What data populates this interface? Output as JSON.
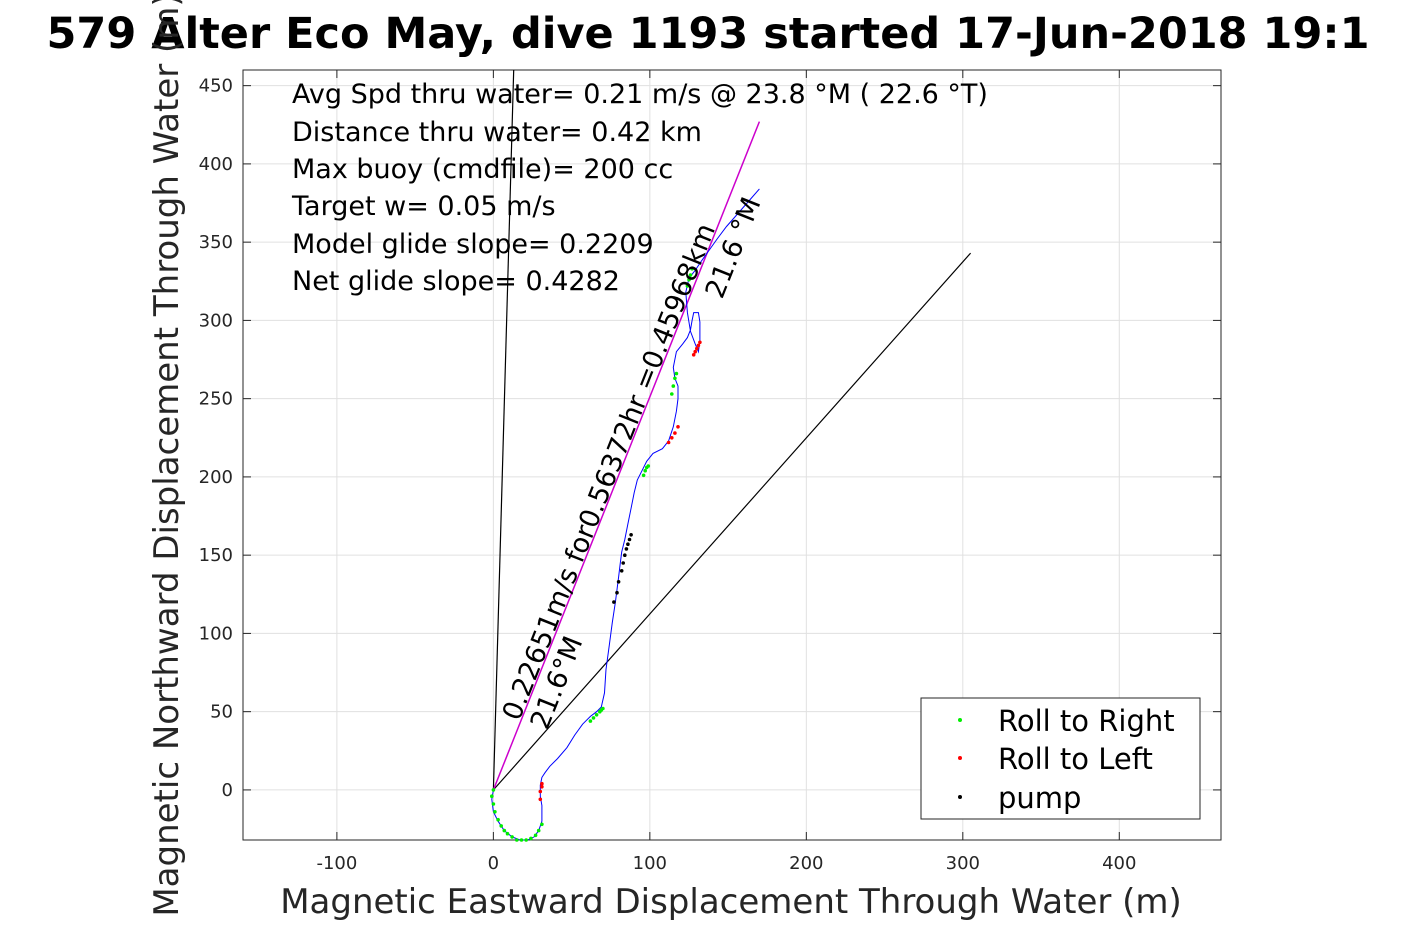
{
  "chart_data": {
    "type": "line",
    "title": "579 Alter Eco May, dive 1193 started 17-Jun-2018 19:1",
    "xlabel": "Magnetic Eastward Displacement Through Water (m)",
    "ylabel": "Magnetic Northward Displacement Through Water (m)",
    "xlim": [
      -160,
      465
    ],
    "ylim": [
      -32,
      460
    ],
    "xticks": [
      -100,
      0,
      100,
      200,
      300,
      400
    ],
    "yticks": [
      0,
      50,
      100,
      150,
      200,
      250,
      300,
      350,
      400,
      450
    ],
    "xtick_labels": [
      "-100",
      "0",
      "100",
      "200",
      "300",
      "400"
    ],
    "ytick_labels": [
      "0",
      "50",
      "100",
      "150",
      "200",
      "250",
      "300",
      "350",
      "400",
      "450"
    ],
    "grid": true,
    "legend_position": "bottom-right",
    "colors": {
      "track": "#0000ff",
      "roll_right": "#00ee00",
      "roll_left": "#ff0000",
      "pump": "#000000",
      "fit": "#cc00cc",
      "reference": "#000000"
    },
    "annotations": [
      "Avg Spd thru water=  0.21 m/s @  23.8 °M ( 22.6 °T)",
      "Distance thru water=  0.42 km",
      "Max buoy (cmdfile)= 200 cc",
      "Target w= 0.05 m/s",
      "Model glide slope= 0.2209",
      "Net glide slope= 0.4282"
    ],
    "line_labels": {
      "speed_line1": "0.22651m/s for0.56372hr =0.45968km",
      "speed_line2": "21.6°M",
      "track_line": "21.6 °M"
    },
    "legend": [
      {
        "label": "Roll to Right",
        "color": "#00ee00"
      },
      {
        "label": "Roll to Left",
        "color": "#ff0000"
      },
      {
        "label": "pump",
        "color": "#000000"
      }
    ],
    "series": [
      {
        "role": "track",
        "x": [
          0,
          -1,
          0,
          3,
          7,
          12,
          17,
          22,
          26,
          29,
          31,
          31,
          30,
          30,
          31,
          33,
          36,
          41,
          47,
          52,
          57,
          62,
          66,
          69,
          71,
          72,
          74,
          76,
          78,
          79,
          80,
          81,
          82,
          84,
          86,
          88,
          90,
          92,
          95,
          98,
          102,
          108,
          112,
          115,
          117,
          118,
          118,
          116,
          115,
          117,
          121,
          124,
          126,
          127,
          128,
          131,
          132,
          132,
          131,
          129,
          126,
          124,
          123,
          125,
          129,
          133,
          138,
          143,
          149,
          156,
          163,
          170
        ],
        "y": [
          0,
          -6,
          -14,
          -20,
          -26,
          -30,
          -32,
          -32,
          -30,
          -26,
          -20,
          -10,
          -4,
          3,
          8,
          11,
          15,
          20,
          27,
          35,
          42,
          47,
          50,
          53,
          62,
          77,
          92,
          107,
          120,
          128,
          136,
          144,
          152,
          160,
          170,
          180,
          190,
          198,
          204,
          210,
          215,
          218,
          223,
          232,
          242,
          250,
          258,
          263,
          270,
          280,
          285,
          289,
          294,
          300,
          305,
          305,
          299,
          287,
          280,
          285,
          293,
          305,
          318,
          327,
          332,
          338,
          345,
          352,
          360,
          368,
          376,
          384
        ]
      },
      {
        "role": "roll_right",
        "x": [
          0,
          -1,
          0,
          1,
          3,
          5,
          7,
          9,
          12,
          15,
          18,
          21,
          24,
          27,
          29,
          31,
          62,
          64,
          66,
          68,
          69,
          70,
          96,
          97,
          98,
          99,
          114,
          115,
          116,
          117,
          124,
          125,
          126,
          127
        ],
        "y": [
          0,
          -4,
          -9,
          -14,
          -19,
          -23,
          -26,
          -28,
          -30,
          -32,
          -32,
          -32,
          -31,
          -29,
          -26,
          -22,
          44,
          46,
          48,
          50,
          51,
          52,
          201,
          204,
          206,
          207,
          253,
          258,
          263,
          266,
          322,
          326,
          329,
          333
        ]
      },
      {
        "role": "roll_left",
        "x": [
          30,
          30,
          31,
          31,
          112,
          114,
          116,
          118,
          128,
          129,
          130,
          131,
          132
        ],
        "y": [
          -6,
          -1,
          2,
          4,
          222,
          225,
          228,
          232,
          278,
          280,
          282,
          284,
          286
        ]
      },
      {
        "role": "pump",
        "x": [
          77,
          79,
          80,
          82,
          83,
          84,
          85,
          86,
          87,
          88
        ],
        "y": [
          120,
          126,
          133,
          140,
          145,
          150,
          154,
          157,
          160,
          163
        ]
      },
      {
        "role": "fit_line",
        "x": [
          0,
          170
        ],
        "y": [
          0,
          427
        ]
      },
      {
        "role": "reference_line_1",
        "x": [
          0,
          13
        ],
        "y": [
          0,
          460
        ]
      },
      {
        "role": "reference_line_2",
        "x": [
          0,
          305
        ],
        "y": [
          0,
          343
        ]
      }
    ]
  }
}
